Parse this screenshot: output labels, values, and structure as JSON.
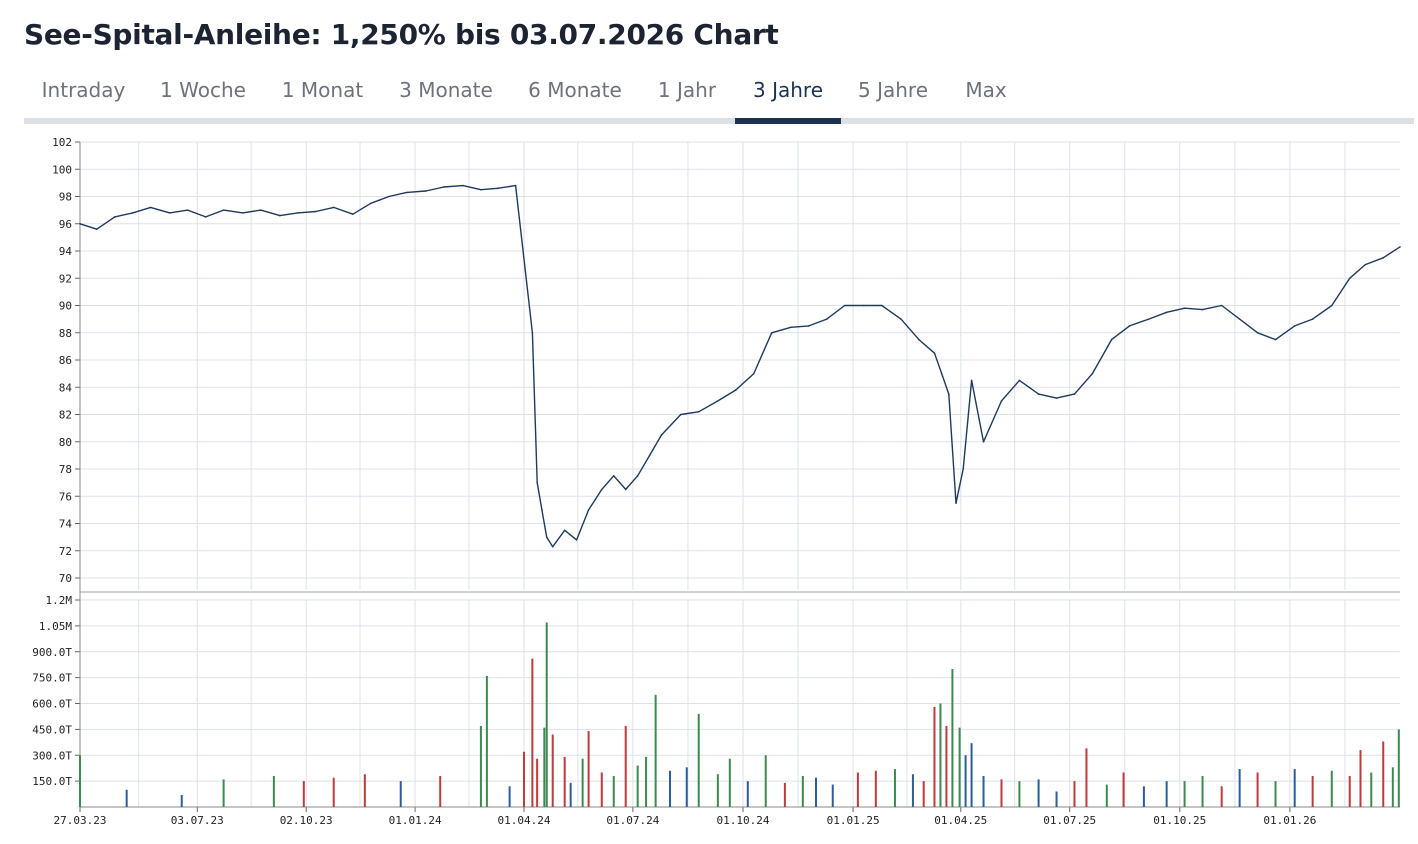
{
  "title": "See-Spital-Anleihe: 1,250% bis 03.07.2026 Chart",
  "tabs": [
    "Intraday",
    "1 Woche",
    "1 Monat",
    "3 Monate",
    "6 Monate",
    "1 Jahr",
    "3 Jahre",
    "5 Jahre",
    "Max"
  ],
  "active_tab": "3 Jahre",
  "colors": {
    "line": "#1f3a5f",
    "up": "#3d8a4f",
    "down": "#c0393b",
    "neutral": "#2b5d9c",
    "grid": "#dde2ea",
    "accent": "#1c3253"
  },
  "chart_data": [
    {
      "type": "line",
      "ylim": [
        70,
        102
      ],
      "y_ticks": [
        "102",
        "100",
        "98",
        "96",
        "94",
        "92",
        "90",
        "88",
        "86",
        "84",
        "82",
        "80",
        "78",
        "76",
        "74",
        "72",
        "70"
      ],
      "x_ticks": [
        "27.03.23",
        "03.07.23",
        "02.10.23",
        "01.01.24",
        "01.04.24",
        "01.07.24",
        "01.10.24",
        "01.01.25",
        "01.04.25",
        "01.07.25",
        "01.10.25",
        "01.01.26"
      ],
      "grid": true,
      "series": [
        {
          "x": [
            "2023-03-27",
            "2023-04-10",
            "2023-04-25",
            "2023-05-10",
            "2023-05-25",
            "2023-06-10",
            "2023-06-25",
            "2023-07-10",
            "2023-07-25",
            "2023-08-10",
            "2023-08-25",
            "2023-09-10",
            "2023-09-25",
            "2023-10-10",
            "2023-10-25",
            "2023-11-10",
            "2023-11-25",
            "2023-12-10",
            "2023-12-25",
            "2024-01-10",
            "2024-01-25",
            "2024-02-10",
            "2024-02-25",
            "2024-03-10",
            "2024-03-25",
            "2024-04-08",
            "2024-04-12",
            "2024-04-16",
            "2024-04-20",
            "2024-04-25",
            "2024-05-05",
            "2024-05-15",
            "2024-05-25",
            "2024-06-05",
            "2024-06-15",
            "2024-06-25",
            "2024-07-05",
            "2024-07-15",
            "2024-07-25",
            "2024-08-10",
            "2024-08-25",
            "2024-09-10",
            "2024-09-25",
            "2024-10-10",
            "2024-10-25",
            "2024-11-10",
            "2024-11-25",
            "2024-12-10",
            "2024-12-25",
            "2025-01-10",
            "2025-01-25",
            "2025-02-10",
            "2025-02-25",
            "2025-03-10",
            "2025-03-16",
            "2025-03-22",
            "2025-03-28",
            "2025-04-03",
            "2025-04-10",
            "2025-04-20",
            "2025-05-05",
            "2025-05-20",
            "2025-06-05",
            "2025-06-20",
            "2025-07-05",
            "2025-07-20",
            "2025-08-05",
            "2025-08-20",
            "2025-09-05",
            "2025-09-20",
            "2025-10-05",
            "2025-10-20",
            "2025-11-05",
            "2025-11-20",
            "2025-12-05",
            "2025-12-20",
            "2026-01-05",
            "2026-01-20",
            "2026-02-05",
            "2026-02-20",
            "2026-03-05",
            "2026-03-20",
            "2026-04-03"
          ],
          "values": [
            96,
            95.6,
            96.5,
            96.8,
            97.2,
            96.8,
            97,
            96.5,
            97,
            96.8,
            97,
            96.6,
            96.8,
            96.9,
            97.2,
            96.7,
            97.5,
            98,
            98.3,
            98.4,
            98.7,
            98.8,
            98.5,
            98.6,
            98.8,
            88,
            77,
            75,
            73,
            72.3,
            73.5,
            72.8,
            75,
            76.5,
            77.5,
            76.5,
            77.5,
            79,
            80.5,
            82,
            82.2,
            83,
            83.8,
            85,
            88,
            88.4,
            88.5,
            89,
            90,
            90,
            90,
            89,
            87.5,
            86.5,
            85,
            83.5,
            75.5,
            78,
            84.5,
            80,
            83,
            84.5,
            83.5,
            83.2,
            83.5,
            85,
            87.5,
            88.5,
            89,
            89.5,
            89.8,
            89.7,
            90,
            89,
            88,
            87.5,
            88.5,
            89,
            90,
            92,
            93,
            93.5,
            94.3
          ]
        }
      ]
    },
    {
      "type": "bar",
      "ylim": [
        0,
        1200000
      ],
      "y_ticks": [
        "1.2M",
        "1.05M",
        "900.0T",
        "750.0T",
        "600.0T",
        "450.0T",
        "300.0T",
        "150.0T"
      ],
      "series": [
        {
          "x": [
            "2023-03-27",
            "2023-05-05",
            "2023-06-20",
            "2023-07-25",
            "2023-09-05",
            "2023-09-30",
            "2023-10-25",
            "2023-11-20",
            "2023-12-20",
            "2024-01-22",
            "2024-02-25",
            "2024-03-01",
            "2024-03-20",
            "2024-04-01",
            "2024-04-08",
            "2024-04-12",
            "2024-04-18",
            "2024-04-20",
            "2024-04-25",
            "2024-05-05",
            "2024-05-10",
            "2024-05-20",
            "2024-05-25",
            "2024-06-05",
            "2024-06-15",
            "2024-06-25",
            "2024-07-05",
            "2024-07-12",
            "2024-07-20",
            "2024-08-01",
            "2024-08-15",
            "2024-08-25",
            "2024-09-10",
            "2024-09-20",
            "2024-10-05",
            "2024-10-20",
            "2024-11-05",
            "2024-11-20",
            "2024-12-01",
            "2024-12-15",
            "2025-01-05",
            "2025-01-20",
            "2025-02-05",
            "2025-02-20",
            "2025-03-01",
            "2025-03-10",
            "2025-03-15",
            "2025-03-20",
            "2025-03-25",
            "2025-03-31",
            "2025-04-05",
            "2025-04-10",
            "2025-04-20",
            "2025-05-05",
            "2025-05-20",
            "2025-06-05",
            "2025-06-20",
            "2025-07-05",
            "2025-07-15",
            "2025-08-01",
            "2025-08-15",
            "2025-09-01",
            "2025-09-20",
            "2025-10-05",
            "2025-10-20",
            "2025-11-05",
            "2025-11-20",
            "2025-12-05",
            "2025-12-20",
            "2026-01-05",
            "2026-01-20",
            "2026-02-05",
            "2026-02-20",
            "2026-03-01",
            "2026-03-10",
            "2026-03-20",
            "2026-03-28",
            "2026-04-02"
          ],
          "values": [
            300000,
            100000,
            70000,
            160000,
            180000,
            150000,
            170000,
            190000,
            150000,
            180000,
            470000,
            760000,
            120000,
            320000,
            860000,
            280000,
            460000,
            1070000,
            420000,
            290000,
            140000,
            280000,
            440000,
            200000,
            180000,
            470000,
            240000,
            290000,
            650000,
            210000,
            230000,
            540000,
            190000,
            280000,
            150000,
            300000,
            140000,
            180000,
            170000,
            130000,
            200000,
            210000,
            220000,
            190000,
            150000,
            580000,
            600000,
            470000,
            800000,
            460000,
            300000,
            370000,
            180000,
            160000,
            150000,
            160000,
            90000,
            150000,
            340000,
            130000,
            200000,
            120000,
            150000,
            150000,
            180000,
            120000,
            220000,
            200000,
            150000,
            220000,
            180000,
            210000,
            180000,
            330000,
            200000,
            380000,
            230000,
            450000
          ],
          "colors": [
            "up",
            "neutral",
            "neutral",
            "up",
            "up",
            "down",
            "down",
            "down",
            "neutral",
            "down",
            "up",
            "up",
            "neutral",
            "down",
            "down",
            "down",
            "up",
            "up",
            "down",
            "down",
            "neutral",
            "up",
            "down",
            "down",
            "up",
            "down",
            "up",
            "up",
            "up",
            "neutral",
            "neutral",
            "up",
            "up",
            "up",
            "neutral",
            "up",
            "down",
            "up",
            "neutral",
            "neutral",
            "down",
            "down",
            "up",
            "neutral",
            "down",
            "down",
            "up",
            "down",
            "up",
            "up",
            "neutral",
            "neutral",
            "neutral",
            "down",
            "up",
            "neutral",
            "neutral",
            "down",
            "down",
            "up",
            "down",
            "neutral",
            "neutral",
            "up",
            "up",
            "down",
            "neutral",
            "down",
            "up",
            "neutral",
            "down",
            "up",
            "down",
            "down",
            "up",
            "down",
            "up",
            "up"
          ]
        }
      ]
    }
  ]
}
